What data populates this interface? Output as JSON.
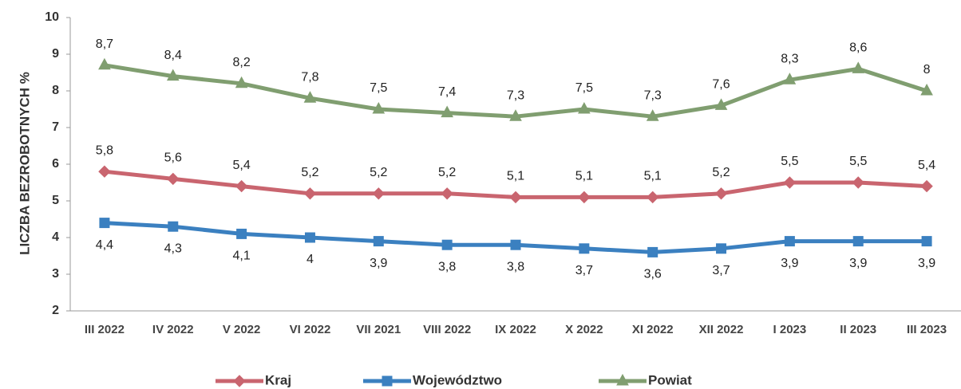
{
  "chart_data": {
    "type": "line",
    "y_label": "LICZBA BEZROBOTNYCH %",
    "categories": [
      "III 2022",
      "IV 2022",
      "V 2022",
      "VI 2022",
      "VII 2021",
      "VIII 2022",
      "IX 2022",
      "X 2022",
      "XI 2022",
      "XII 2022",
      "I 2023",
      "II 2023",
      "III 2023"
    ],
    "ylim": [
      2,
      10
    ],
    "yticks": [
      2,
      3,
      4,
      5,
      6,
      7,
      8,
      9,
      10
    ],
    "grid": false,
    "legend": "bottom",
    "series": [
      {
        "name": "Kraj",
        "color": "#c9656f",
        "marker": "diamond",
        "label_position": "above",
        "values": [
          5.8,
          5.6,
          5.4,
          5.2,
          5.2,
          5.2,
          5.1,
          5.1,
          5.1,
          5.2,
          5.5,
          5.5,
          5.4
        ],
        "value_labels": [
          "5,8",
          "5,6",
          "5,4",
          "5,2",
          "5,2",
          "5,2",
          "5,1",
          "5,1",
          "5,1",
          "5,2",
          "5,5",
          "5,5",
          "5,4"
        ]
      },
      {
        "name": "Województwo",
        "color": "#3b80c0",
        "marker": "square",
        "label_position": "below",
        "values": [
          4.4,
          4.3,
          4.1,
          4,
          3.9,
          3.8,
          3.8,
          3.7,
          3.6,
          3.7,
          3.9,
          3.9,
          3.9
        ],
        "value_labels": [
          "4,4",
          "4,3",
          "4,1",
          "4",
          "3,9",
          "3,8",
          "3,8",
          "3,7",
          "3,6",
          "3,7",
          "3,9",
          "3,9",
          "3,9"
        ]
      },
      {
        "name": "Powiat",
        "color": "#809e70",
        "marker": "triangle",
        "label_position": "above",
        "values": [
          8.7,
          8.4,
          8.2,
          7.8,
          7.5,
          7.4,
          7.3,
          7.5,
          7.3,
          7.6,
          8.3,
          8.6,
          8
        ],
        "value_labels": [
          "8,7",
          "8,4",
          "8,2",
          "7,8",
          "7,5",
          "7,4",
          "7,3",
          "7,5",
          "7,3",
          "7,6",
          "8,3",
          "8,6",
          "8"
        ]
      }
    ]
  }
}
